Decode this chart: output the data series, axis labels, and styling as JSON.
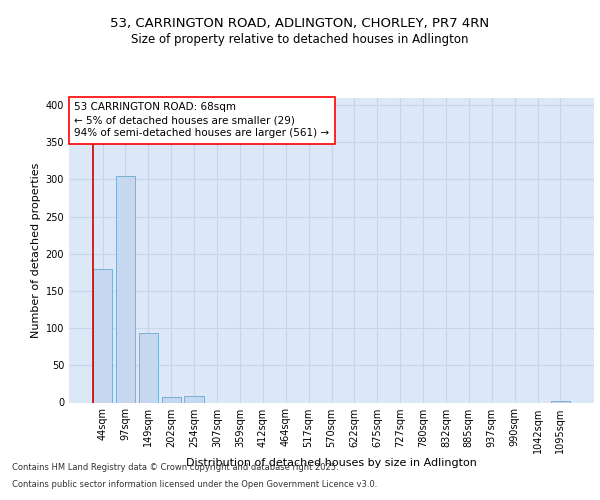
{
  "title_line1": "53, CARRINGTON ROAD, ADLINGTON, CHORLEY, PR7 4RN",
  "title_line2": "Size of property relative to detached houses in Adlington",
  "xlabel": "Distribution of detached houses by size in Adlington",
  "ylabel": "Number of detached properties",
  "categories": [
    "44sqm",
    "97sqm",
    "149sqm",
    "202sqm",
    "254sqm",
    "307sqm",
    "359sqm",
    "412sqm",
    "464sqm",
    "517sqm",
    "570sqm",
    "622sqm",
    "675sqm",
    "727sqm",
    "780sqm",
    "832sqm",
    "885sqm",
    "937sqm",
    "990sqm",
    "1042sqm",
    "1095sqm"
  ],
  "values": [
    180,
    305,
    93,
    8,
    9,
    0,
    0,
    0,
    0,
    0,
    0,
    0,
    0,
    0,
    0,
    0,
    0,
    0,
    0,
    0,
    2
  ],
  "bar_color": "#c5d8f0",
  "bar_edge_color": "#7bafd4",
  "annotation_text": "53 CARRINGTON ROAD: 68sqm\n← 5% of detached houses are smaller (29)\n94% of semi-detached houses are larger (561) →",
  "vline_color": "#cc0000",
  "ylim": [
    0,
    410
  ],
  "yticks": [
    0,
    50,
    100,
    150,
    200,
    250,
    300,
    350,
    400
  ],
  "grid_color": "#c8d4e8",
  "bg_color": "#dce8f8",
  "footer_line1": "Contains HM Land Registry data © Crown copyright and database right 2025.",
  "footer_line2": "Contains public sector information licensed under the Open Government Licence v3.0.",
  "title_fontsize": 9.5,
  "subtitle_fontsize": 8.5,
  "axis_label_fontsize": 8,
  "tick_fontsize": 7,
  "annotation_fontsize": 7.5,
  "footer_fontsize": 6
}
